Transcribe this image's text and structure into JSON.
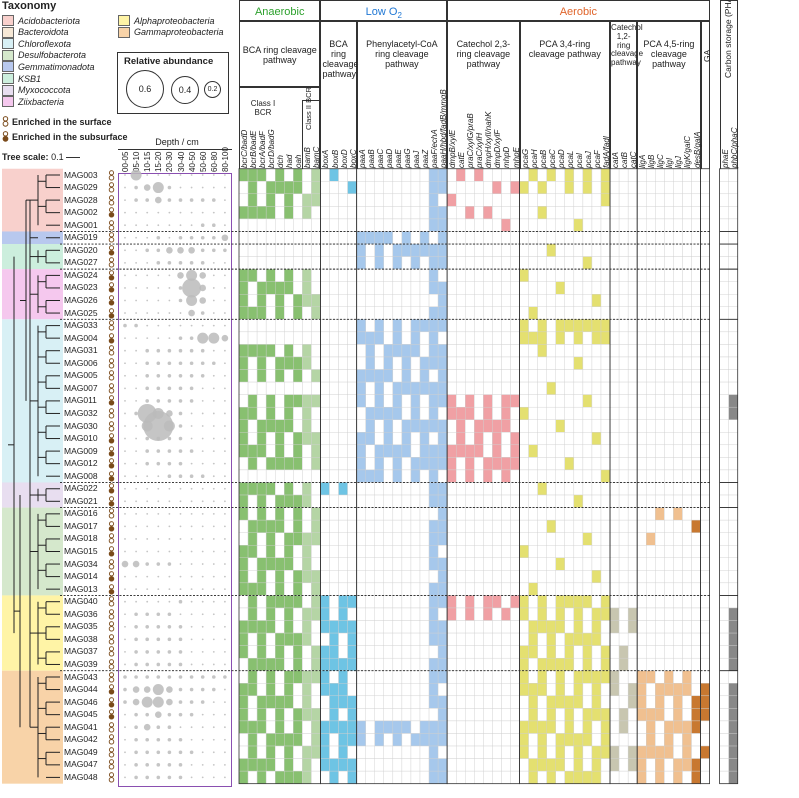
{
  "legend": {
    "title": "Taxonomy",
    "taxa": [
      {
        "name": "Acidobacteriota",
        "color": "#f8d0cc"
      },
      {
        "name": "Bacteroidota",
        "color": "#f6e8d6"
      },
      {
        "name": "Chloroflexota",
        "color": "#d8f0f5"
      },
      {
        "name": "Desulfobacterota",
        "color": "#d5e8cc"
      },
      {
        "name": "Gemmatimonadota",
        "color": "#b8c8ee"
      },
      {
        "name": "KSB1",
        "color": "#cceedd"
      },
      {
        "name": "Myxococcota",
        "color": "#e8def0"
      },
      {
        "name": "Ziixbacteria",
        "color": "#f5c8ee"
      },
      {
        "name": "Alphaproteobacteria",
        "color": "#fff4a6"
      },
      {
        "name": "Gammaproteobacteria",
        "color": "#f8d3a8"
      }
    ],
    "relative_abundance": {
      "title": "Relative abundance",
      "values": [
        "0.6",
        "0.4",
        "0.2"
      ]
    },
    "enriched_surface": "Enriched in the surface",
    "enriched_subsurface": "Enriched in the subsurface",
    "tree_scale_label": "Tree scale:",
    "tree_scale_value": "0.1"
  },
  "depth": {
    "title": "Depth / cm",
    "bins": [
      "00-05",
      "05-10",
      "10-15",
      "15-20",
      "20-30",
      "30-40",
      "40-50",
      "50-60",
      "60-80",
      "80-100"
    ]
  },
  "mags": [
    {
      "id": "MAG003",
      "enr": "s",
      "row": [
        0,
        3,
        0,
        0,
        0,
        0,
        0,
        0,
        0,
        0
      ]
    },
    {
      "id": "MAG029",
      "enr": "s",
      "row": [
        0,
        1,
        2,
        3,
        1,
        0,
        0,
        0,
        0,
        0
      ]
    },
    {
      "id": "MAG028",
      "enr": "s",
      "row": [
        0,
        1,
        1,
        2,
        1,
        1,
        1,
        1,
        1,
        0
      ]
    },
    {
      "id": "MAG002",
      "enr": "d",
      "row": [
        0,
        0,
        0,
        0,
        0,
        0,
        0,
        0,
        0,
        0
      ]
    },
    {
      "id": "MAG001",
      "enr": "s",
      "row": [
        0,
        0,
        0,
        0,
        0,
        0,
        0,
        1,
        1,
        0
      ]
    },
    {
      "id": "MAG019",
      "enr": "s",
      "row": [
        0,
        0,
        0,
        1,
        0,
        1,
        1,
        1,
        1,
        2
      ]
    },
    {
      "id": "MAG020",
      "enr": "d",
      "row": [
        0,
        0,
        1,
        1,
        2,
        2,
        2,
        1,
        1,
        1
      ]
    },
    {
      "id": "MAG027",
      "enr": "s",
      "row": [
        0,
        0,
        0,
        1,
        1,
        1,
        1,
        1,
        0,
        0
      ]
    },
    {
      "id": "MAG024",
      "enr": "d",
      "row": [
        0,
        0,
        0,
        0,
        0,
        2,
        3,
        2,
        0,
        0
      ]
    },
    {
      "id": "MAG023",
      "enr": "d",
      "row": [
        0,
        0,
        0,
        0,
        0,
        1,
        4,
        2,
        0,
        0
      ]
    },
    {
      "id": "MAG026",
      "enr": "d",
      "row": [
        0,
        0,
        0,
        0,
        0,
        1,
        3,
        2,
        0,
        0
      ]
    },
    {
      "id": "MAG025",
      "enr": "d",
      "row": [
        0,
        0,
        0,
        0,
        0,
        0,
        2,
        1,
        0,
        0
      ]
    },
    {
      "id": "MAG033",
      "enr": "s",
      "row": [
        1,
        1,
        0,
        0,
        0,
        0,
        0,
        0,
        0,
        0
      ]
    },
    {
      "id": "MAG004",
      "enr": "d",
      "row": [
        0,
        0,
        0,
        0,
        0,
        1,
        1,
        3,
        3,
        2
      ]
    },
    {
      "id": "MAG031",
      "enr": "s",
      "row": [
        0,
        0,
        1,
        1,
        1,
        1,
        1,
        1,
        0,
        0
      ]
    },
    {
      "id": "MAG006",
      "enr": "s",
      "row": [
        0,
        0,
        1,
        1,
        1,
        1,
        1,
        1,
        1,
        0
      ]
    },
    {
      "id": "MAG005",
      "enr": "s",
      "row": [
        0,
        0,
        1,
        1,
        1,
        1,
        1,
        1,
        0,
        0
      ]
    },
    {
      "id": "MAG007",
      "enr": "s",
      "row": [
        0,
        0,
        1,
        1,
        1,
        1,
        1,
        0,
        0,
        0
      ]
    },
    {
      "id": "MAG011",
      "enr": "d",
      "row": [
        0,
        0,
        1,
        1,
        1,
        1,
        1,
        0,
        0,
        0
      ]
    },
    {
      "id": "MAG032",
      "enr": "s",
      "row": [
        0,
        1,
        4,
        3,
        2,
        1,
        0,
        0,
        0,
        0
      ]
    },
    {
      "id": "MAG030",
      "enr": "s",
      "row": [
        0,
        0,
        3,
        5,
        3,
        1,
        0,
        0,
        0,
        0
      ]
    },
    {
      "id": "MAG010",
      "enr": "d",
      "row": [
        0,
        0,
        1,
        1,
        1,
        1,
        0,
        0,
        0,
        0
      ]
    },
    {
      "id": "MAG009",
      "enr": "d",
      "row": [
        0,
        0,
        1,
        1,
        1,
        1,
        1,
        0,
        0,
        0
      ]
    },
    {
      "id": "MAG012",
      "enr": "d",
      "row": [
        0,
        0,
        1,
        1,
        1,
        1,
        0,
        0,
        0,
        0
      ]
    },
    {
      "id": "MAG008",
      "enr": "d",
      "row": [
        0,
        0,
        0,
        0,
        1,
        1,
        1,
        1,
        0,
        0
      ]
    },
    {
      "id": "MAG022",
      "enr": "d",
      "row": [
        0,
        0,
        0,
        0,
        0,
        0,
        0,
        0,
        0,
        0
      ]
    },
    {
      "id": "MAG021",
      "enr": "d",
      "row": [
        0,
        0,
        0,
        0,
        0,
        0,
        0,
        0,
        0,
        0
      ]
    },
    {
      "id": "MAG016",
      "enr": "s",
      "row": [
        0,
        0,
        0,
        0,
        0,
        0,
        0,
        0,
        0,
        0
      ]
    },
    {
      "id": "MAG017",
      "enr": "d",
      "row": [
        0,
        0,
        0,
        0,
        0,
        0,
        0,
        0,
        0,
        0
      ]
    },
    {
      "id": "MAG018",
      "enr": "s",
      "row": [
        0,
        0,
        0,
        0,
        0,
        0,
        0,
        0,
        0,
        0
      ]
    },
    {
      "id": "MAG015",
      "enr": "d",
      "row": [
        0,
        0,
        0,
        0,
        0,
        0,
        0,
        0,
        0,
        0
      ]
    },
    {
      "id": "MAG034",
      "enr": "s",
      "row": [
        2,
        2,
        1,
        1,
        1,
        0,
        0,
        0,
        0,
        0
      ]
    },
    {
      "id": "MAG014",
      "enr": "d",
      "row": [
        0,
        0,
        0,
        0,
        0,
        0,
        0,
        0,
        0,
        0
      ]
    },
    {
      "id": "MAG013",
      "enr": "d",
      "row": [
        0,
        0,
        0,
        0,
        0,
        0,
        0,
        0,
        0,
        0
      ]
    },
    {
      "id": "MAG040",
      "enr": "s",
      "row": [
        0,
        0,
        0,
        0,
        0,
        1,
        0,
        0,
        0,
        0
      ]
    },
    {
      "id": "MAG036",
      "enr": "s",
      "row": [
        0,
        1,
        1,
        1,
        1,
        0,
        0,
        0,
        0,
        0
      ]
    },
    {
      "id": "MAG035",
      "enr": "s",
      "row": [
        0,
        1,
        1,
        1,
        1,
        1,
        0,
        0,
        0,
        0
      ]
    },
    {
      "id": "MAG038",
      "enr": "s",
      "row": [
        0,
        1,
        1,
        1,
        1,
        1,
        0,
        0,
        0,
        0
      ]
    },
    {
      "id": "MAG037",
      "enr": "s",
      "row": [
        0,
        1,
        1,
        1,
        1,
        1,
        0,
        0,
        0,
        0
      ]
    },
    {
      "id": "MAG039",
      "enr": "s",
      "row": [
        0,
        1,
        1,
        1,
        1,
        1,
        0,
        0,
        0,
        0
      ]
    },
    {
      "id": "MAG043",
      "enr": "s",
      "row": [
        1,
        1,
        1,
        1,
        1,
        1,
        1,
        1,
        1,
        1
      ]
    },
    {
      "id": "MAG044",
      "enr": "d",
      "row": [
        1,
        2,
        2,
        3,
        2,
        1,
        1,
        1,
        1,
        0
      ]
    },
    {
      "id": "MAG046",
      "enr": "d",
      "row": [
        1,
        2,
        3,
        3,
        2,
        1,
        1,
        1,
        0,
        0
      ]
    },
    {
      "id": "MAG045",
      "enr": "d",
      "row": [
        0,
        1,
        1,
        2,
        1,
        1,
        1,
        0,
        0,
        0
      ]
    },
    {
      "id": "MAG041",
      "enr": "s",
      "row": [
        0,
        1,
        2,
        1,
        1,
        0,
        0,
        0,
        0,
        0
      ]
    },
    {
      "id": "MAG042",
      "enr": "s",
      "row": [
        0,
        1,
        1,
        1,
        1,
        1,
        0,
        0,
        0,
        0
      ]
    },
    {
      "id": "MAG049",
      "enr": "s",
      "row": [
        0,
        1,
        1,
        1,
        1,
        1,
        1,
        0,
        0,
        0
      ]
    },
    {
      "id": "MAG047",
      "enr": "s",
      "row": [
        0,
        1,
        1,
        1,
        1,
        1,
        0,
        0,
        0,
        0
      ]
    },
    {
      "id": "MAG048",
      "enr": "s",
      "row": [
        0,
        1,
        1,
        1,
        1,
        1,
        0,
        0,
        0,
        0
      ]
    }
  ],
  "clades": [
    {
      "taxon": "Acidobacteriota",
      "from": 0,
      "to": 4
    },
    {
      "taxon": "Gemmatimonadota",
      "from": 5,
      "to": 5
    },
    {
      "taxon": "KSB1",
      "from": 6,
      "to": 7
    },
    {
      "taxon": "Ziixbacteria",
      "from": 8,
      "to": 11
    },
    {
      "taxon": "Chloroflexota",
      "from": 12,
      "to": 24
    },
    {
      "taxon": "Myxococcota",
      "from": 25,
      "to": 26
    },
    {
      "taxon": "Desulfobacterota",
      "from": 27,
      "to": 33
    },
    {
      "taxon": "Alphaproteobacteria",
      "from": 34,
      "to": 39
    },
    {
      "taxon": "Gammaproteobacteria",
      "from": 40,
      "to": 48
    }
  ],
  "categories": [
    {
      "label": "Anaerobic",
      "color": "#2ca02c"
    },
    {
      "label": "Low O",
      "sub": "2",
      "color": "#1f77d4"
    },
    {
      "label": "Aerobic",
      "color": "#e0642a"
    }
  ],
  "pathways": [
    {
      "label": "BCA ring cleavage pathway",
      "genes": [
        "bcrC/badD",
        "bcrB/badE",
        "bcrA/badF",
        "bcrD/badG",
        "dch",
        "had",
        "oah",
        "bamB",
        "bamC"
      ],
      "color": "#88c070",
      "light": "#b5d5a5",
      "subgroups": [
        {
          "label": "Class I BCR",
          "span": 4
        },
        {
          "label": "Class II BCR",
          "span": 2
        }
      ]
    },
    {
      "label": "BCA ring cleavage pathway",
      "genes": [
        "boxA",
        "boxB",
        "boxD",
        "boxC"
      ],
      "color": "#6ec4e4"
    },
    {
      "label": "Phenylacetyl-CoA ring cleavage pathway",
      "genes": [
        "paaA",
        "paaB",
        "paaC",
        "paaD",
        "paaE",
        "paaG",
        "paaJ",
        "paaZ",
        "paaF/echA",
        "paaH/hbd/fadB/mmgB"
      ],
      "color": "#a6c8ec"
    },
    {
      "label": "Catechol 2,3-ring cleavage pathway",
      "genes": [
        "dmpB/xylE",
        "catE",
        "praC/xylG/praB",
        "praC/xylH",
        "dmpH/xylI/nahK",
        "dmpD/xylF",
        "mhpD",
        "mhpE"
      ],
      "color": "#f0a0a4"
    },
    {
      "label": "PCA 3,4-ring cleavage pathway",
      "genes": [
        "pcaG",
        "pcaH",
        "pcaB",
        "pcaC",
        "pcaD",
        "pcaL",
        "pcaI",
        "pcaJ",
        "pcaF",
        "fadA/fadI"
      ],
      "color": "#e4e070"
    },
    {
      "label": "Catechol 1,2-ring cleavage pathway",
      "genes": [
        "catA",
        "catB",
        "catC"
      ],
      "color": "#c8c6b0"
    },
    {
      "label": "PCA 4,5-ring cleavage pathway",
      "genes": [
        "ligA",
        "ligB",
        "ligC",
        "ligI",
        "ligJ",
        "ligK/galC",
        "desB/galA"
      ],
      "color": "#f0c090",
      "dark": "#c87830"
    },
    {
      "label": "GA",
      "genes": [],
      "color": "#c87830"
    },
    {
      "label": "Carbon storage (PHAs)",
      "genes": [
        "phaE",
        "phbC/phaC"
      ],
      "color": "#888888"
    }
  ]
}
